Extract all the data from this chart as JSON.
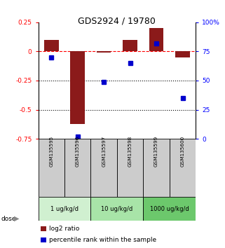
{
  "title": "GDS2924 / 19780",
  "samples": [
    "GSM135595",
    "GSM135596",
    "GSM135597",
    "GSM135598",
    "GSM135599",
    "GSM135600"
  ],
  "log2_ratio": [
    0.1,
    -0.62,
    -0.01,
    0.1,
    0.2,
    -0.05
  ],
  "percentile_rank": [
    70,
    2,
    49,
    65,
    82,
    35
  ],
  "doses": [
    {
      "label": "1 ug/kg/d",
      "start": 0,
      "end": 2,
      "color": "#d0f0d0"
    },
    {
      "label": "10 ug/kg/d",
      "start": 2,
      "end": 4,
      "color": "#a8e4a8"
    },
    {
      "label": "1000 ug/kg/d",
      "start": 4,
      "end": 6,
      "color": "#6cc86c"
    }
  ],
  "bar_color": "#8B1A1A",
  "dot_color": "#0000CC",
  "ylim_left": [
    -0.75,
    0.25
  ],
  "ylim_right": [
    0,
    100
  ],
  "yticks_left": [
    0.25,
    0,
    -0.25,
    -0.5,
    -0.75
  ],
  "yticks_right": [
    100,
    75,
    50,
    25,
    0
  ],
  "dotted_lines": [
    -0.25,
    -0.5
  ],
  "bar_width": 0.55,
  "dot_size": 28,
  "sample_box_color": "#cccccc",
  "background_color": "#ffffff"
}
